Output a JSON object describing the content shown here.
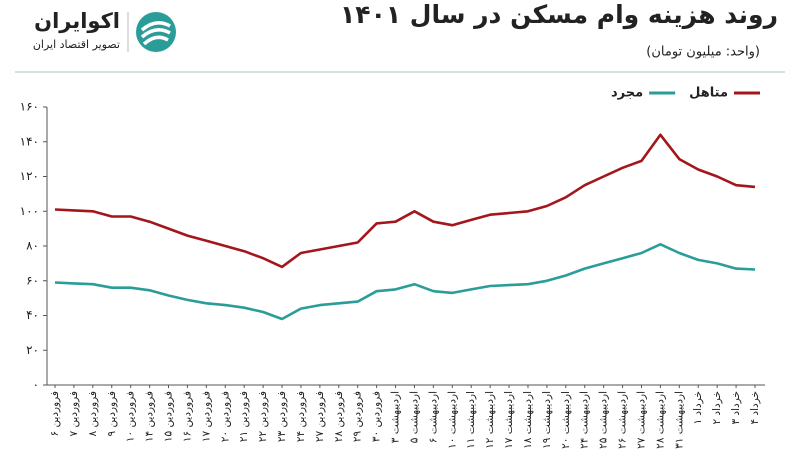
{
  "brand": {
    "name": "اکوایران",
    "tagline": "تصویر اقتصاد ایران"
  },
  "chart_data": {
    "type": "line",
    "title": "روند هزینه وام مسکن در سال ۱۴۰۱",
    "subtitle": "(واحد: میلیون تومان)",
    "categories": [
      "۶ فروردین",
      "۷ فروردین",
      "۸ فروردین",
      "۹ فروردین",
      "۱۰ فروردین",
      "۱۴ فروردین",
      "۱۵ فروردین",
      "۱۶ فروردین",
      "۱۷ فروردین",
      "۲۰ فروردین",
      "۲۱ فروردین",
      "۲۲ فروردین",
      "۲۳ فروردین",
      "۲۴ فروردین",
      "۲۷ فروردین",
      "۲۸ فروردین",
      "۲۹ فروردین",
      "۳۰ فروردین",
      "۳ اردیبهشت",
      "۵ اردیبهشت",
      "۶ اردیبهشت",
      "۱۰ اردیبهشت",
      "۱۱ اردیبهشت",
      "۱۲ اردیبهشت",
      "۱۷ اردیبهشت",
      "۱۸ اردیبهشت",
      "۱۹ اردیبهشت",
      "۲۰ اردیبهشت",
      "۲۴ اردیبهشت",
      "۲۵ اردیبهشت",
      "۲۶ اردیبهشت",
      "۲۷ اردیبهشت",
      "۲۸ اردیبهشت",
      "۳۱ اردیبهشت",
      "۱ خرداد",
      "۲ خرداد",
      "۳ خرداد",
      "۴ خرداد"
    ],
    "series": [
      {
        "name": "متاهل",
        "color": "#a3161c",
        "values": [
          101,
          100.5,
          100,
          97,
          97,
          94,
          90,
          86,
          83,
          80,
          77,
          73,
          68,
          76,
          78,
          80,
          82,
          93,
          94,
          100,
          94,
          92,
          95,
          98,
          99,
          100,
          103,
          108,
          115,
          120,
          125,
          129,
          144,
          130,
          124,
          120,
          115,
          114
        ]
      },
      {
        "name": "مجرد",
        "color": "#2a9d98",
        "values": [
          59,
          58.5,
          58,
          56,
          56,
          54.5,
          51.5,
          49,
          47,
          46,
          44.5,
          42,
          38,
          44,
          46,
          47,
          48,
          54,
          55,
          58,
          54,
          53,
          55,
          57,
          57.5,
          58,
          60,
          63,
          67,
          70,
          73,
          76,
          81,
          76,
          72,
          70,
          67,
          66.5
        ]
      }
    ],
    "ylim": [
      0,
      160
    ],
    "yticks": [
      {
        "value": 0,
        "label": "۰"
      },
      {
        "value": 20,
        "label": "۲۰"
      },
      {
        "value": 40,
        "label": "۴۰"
      },
      {
        "value": 60,
        "label": "۶۰"
      },
      {
        "value": 80,
        "label": "۸۰"
      },
      {
        "value": 100,
        "label": "۱۰۰"
      },
      {
        "value": 120,
        "label": "۱۲۰"
      },
      {
        "value": 140,
        "label": "۱۴۰"
      },
      {
        "value": 160,
        "label": "۱۶۰"
      }
    ],
    "legend": "top-right"
  }
}
